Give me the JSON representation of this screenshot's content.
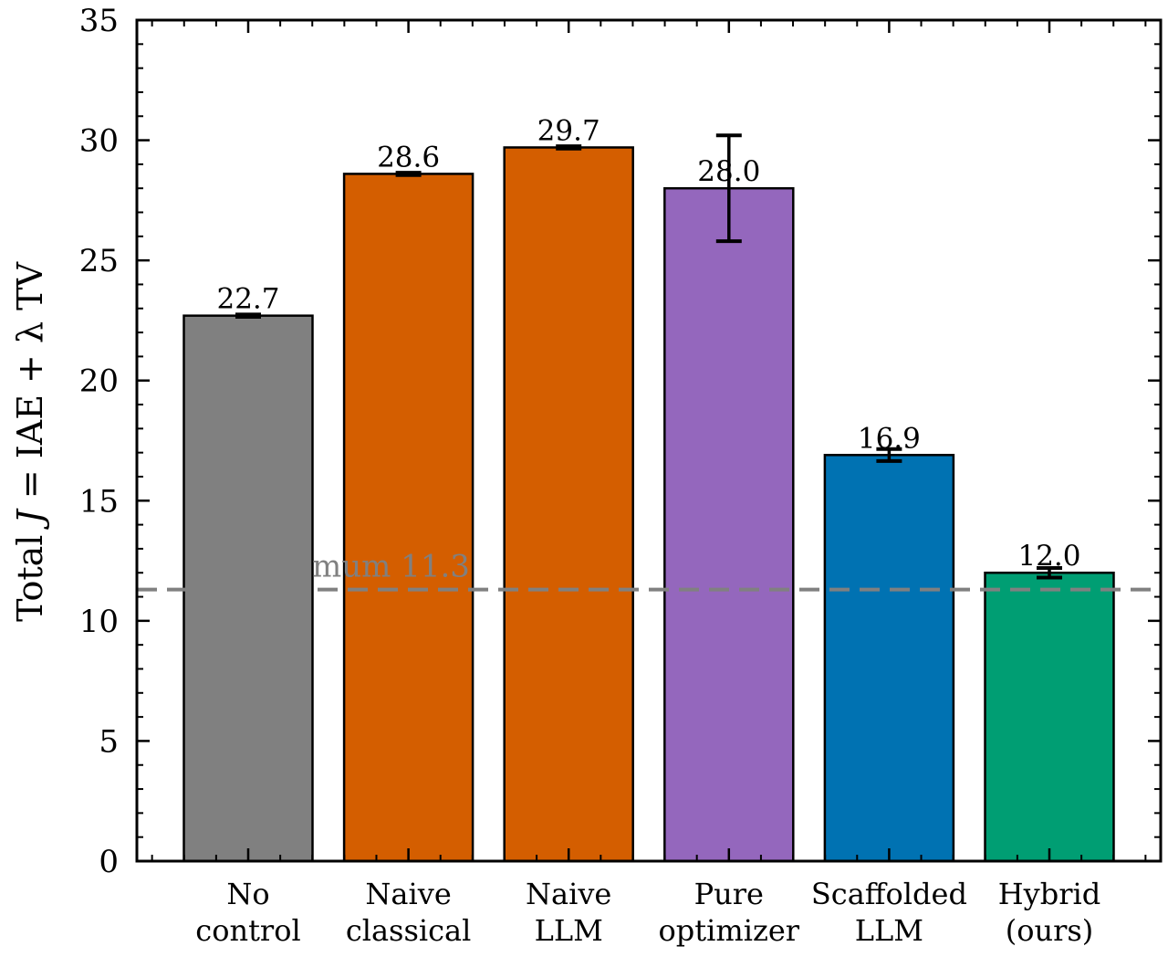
{
  "chart_data": {
    "type": "bar",
    "title": "",
    "xlabel": "",
    "ylabel": "Total J = IAE + λ TV",
    "ylabel_parts": [
      "Total ",
      "J",
      " = IAE + λ TV"
    ],
    "ylim": [
      0,
      35
    ],
    "yticks": [
      0,
      5,
      10,
      15,
      20,
      25,
      30,
      35
    ],
    "grid": false,
    "categories": [
      [
        "No",
        "control"
      ],
      [
        "Naive",
        "classical"
      ],
      [
        "Naive",
        "LLM"
      ],
      [
        "Pure",
        "optimizer"
      ],
      [
        "Scaffolded",
        "LLM"
      ],
      [
        "Hybrid",
        "(ours)"
      ]
    ],
    "values": [
      22.7,
      28.6,
      29.7,
      28.0,
      16.9,
      12.0
    ],
    "value_labels": [
      "22.7",
      "28.6",
      "29.7",
      "28.0",
      "16.9",
      "12.0"
    ],
    "error_low": [
      0.05,
      0.05,
      0.05,
      2.2,
      0.25,
      0.2
    ],
    "error_high": [
      0.05,
      0.05,
      0.05,
      2.2,
      0.25,
      0.2
    ],
    "colors": [
      "#808080",
      "#d45e00",
      "#d45e00",
      "#9467bd",
      "#0072b2",
      "#009e73"
    ],
    "reference_line": {
      "value": 11.3,
      "label": "mum 11.3",
      "color": "#808080",
      "style": "dashed"
    }
  }
}
